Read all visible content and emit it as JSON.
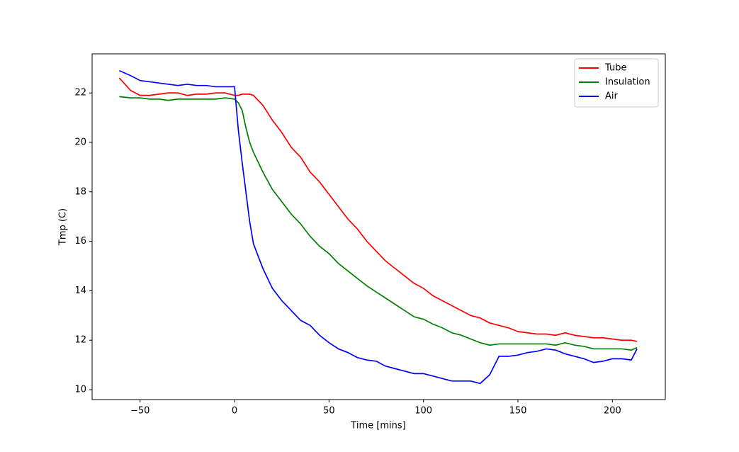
{
  "chart_data": {
    "type": "line",
    "xlabel": "Time [mins]",
    "ylabel": "Tmp (C)",
    "x": [
      -61,
      -55,
      -50,
      -45,
      -40,
      -35,
      -30,
      -25,
      -20,
      -15,
      -10,
      -5,
      0,
      2,
      4,
      6,
      8,
      10,
      15,
      20,
      25,
      30,
      35,
      40,
      45,
      50,
      55,
      60,
      65,
      70,
      75,
      80,
      85,
      90,
      95,
      100,
      105,
      110,
      115,
      120,
      125,
      130,
      135,
      140,
      145,
      150,
      155,
      160,
      165,
      170,
      175,
      180,
      185,
      190,
      195,
      200,
      205,
      210,
      213
    ],
    "series": [
      {
        "name": "Tube",
        "color": "#ff0000",
        "values": [
          22.6,
          22.1,
          21.9,
          21.9,
          21.95,
          22.0,
          22.0,
          21.9,
          21.95,
          21.95,
          22.0,
          22.0,
          21.9,
          21.9,
          21.95,
          21.95,
          21.95,
          21.9,
          21.5,
          20.9,
          20.4,
          19.8,
          19.4,
          18.8,
          18.4,
          17.9,
          17.4,
          16.9,
          16.5,
          16.0,
          15.6,
          15.2,
          14.9,
          14.6,
          14.3,
          14.1,
          13.8,
          13.6,
          13.4,
          13.2,
          13.0,
          12.9,
          12.7,
          12.6,
          12.5,
          12.35,
          12.3,
          12.25,
          12.25,
          12.2,
          12.3,
          12.2,
          12.15,
          12.1,
          12.1,
          12.05,
          12.0,
          12.0,
          11.95
        ]
      },
      {
        "name": "Insulation",
        "color": "#008000",
        "values": [
          21.85,
          21.8,
          21.8,
          21.75,
          21.75,
          21.7,
          21.75,
          21.75,
          21.75,
          21.75,
          21.75,
          21.8,
          21.75,
          21.6,
          21.3,
          20.6,
          20.0,
          19.6,
          18.8,
          18.1,
          17.6,
          17.1,
          16.7,
          16.2,
          15.8,
          15.5,
          15.1,
          14.8,
          14.5,
          14.2,
          13.95,
          13.7,
          13.45,
          13.2,
          12.95,
          12.85,
          12.65,
          12.5,
          12.3,
          12.2,
          12.05,
          11.9,
          11.8,
          11.85,
          11.85,
          11.85,
          11.85,
          11.85,
          11.85,
          11.8,
          11.9,
          11.8,
          11.75,
          11.65,
          11.65,
          11.65,
          11.65,
          11.6,
          11.7
        ]
      },
      {
        "name": "Air",
        "color": "#0000ff",
        "values": [
          22.9,
          22.7,
          22.5,
          22.45,
          22.4,
          22.35,
          22.3,
          22.35,
          22.3,
          22.3,
          22.25,
          22.25,
          22.25,
          20.5,
          19.2,
          18.0,
          16.8,
          15.9,
          14.9,
          14.1,
          13.6,
          13.2,
          12.8,
          12.6,
          12.2,
          11.9,
          11.65,
          11.5,
          11.3,
          11.2,
          11.15,
          10.95,
          10.85,
          10.75,
          10.65,
          10.65,
          10.55,
          10.45,
          10.35,
          10.35,
          10.35,
          10.25,
          10.6,
          11.35,
          11.35,
          11.4,
          11.5,
          11.55,
          11.65,
          11.6,
          11.45,
          11.35,
          11.25,
          11.1,
          11.15,
          11.25,
          11.25,
          11.2,
          11.65
        ]
      }
    ],
    "xlim": [
      -75.4,
      228
    ],
    "ylim": [
      9.6,
      23.58
    ],
    "xticks": [
      {
        "value": -50,
        "label": "−50"
      },
      0,
      50,
      100,
      150,
      200
    ],
    "yticks": [
      10,
      12,
      14,
      16,
      18,
      20,
      22
    ],
    "legend": "upper right"
  }
}
